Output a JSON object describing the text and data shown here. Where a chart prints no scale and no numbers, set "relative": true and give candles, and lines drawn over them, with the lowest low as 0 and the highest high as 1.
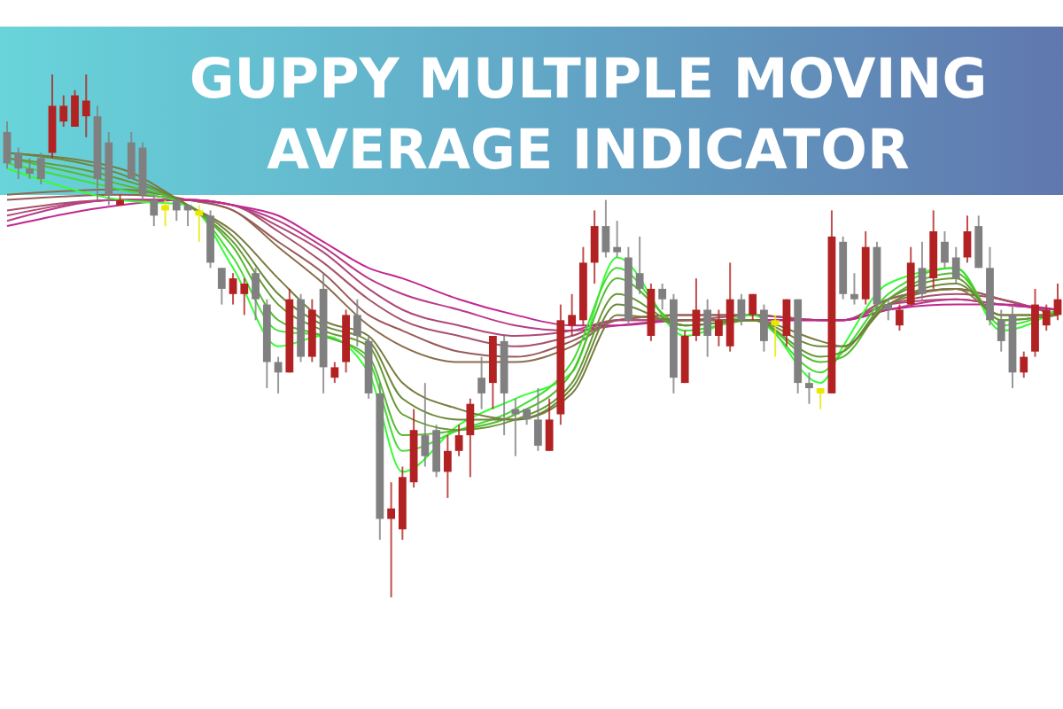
{
  "chart_data": {
    "type": "candlestick",
    "title": "GUPPY MULTIPLE MOVING AVERAGE INDICATOR",
    "relative": true,
    "categories": [
      null,
      null,
      null,
      null,
      null,
      null,
      null,
      null,
      null,
      null,
      null,
      null,
      null,
      null,
      null,
      null,
      null,
      null,
      null,
      null,
      null,
      null,
      null,
      null,
      null,
      null,
      null,
      null,
      null,
      null,
      null,
      null,
      null,
      null,
      null,
      null,
      null,
      null,
      null,
      null,
      null,
      null,
      null,
      null,
      null,
      null,
      null,
      null,
      null,
      null,
      null,
      null,
      null,
      null,
      null,
      null,
      null,
      null,
      null,
      null,
      null,
      null,
      null,
      null,
      null,
      null,
      null,
      null,
      null,
      null,
      null,
      null,
      null,
      null,
      null,
      null,
      null,
      null,
      null,
      null,
      null,
      null,
      null,
      null,
      null,
      null,
      null,
      null,
      null,
      null,
      null,
      null,
      null,
      null
    ],
    "ohlc": [
      [
        0.89,
        0.91,
        0.82,
        0.83
      ],
      [
        0.85,
        0.86,
        0.8,
        0.82
      ],
      [
        0.82,
        0.84,
        0.8,
        0.81
      ],
      [
        0.84,
        0.85,
        0.79,
        0.8
      ],
      [
        0.85,
        1.0,
        0.84,
        0.94
      ],
      [
        0.91,
        0.96,
        0.9,
        0.94
      ],
      [
        0.9,
        0.97,
        0.9,
        0.96
      ],
      [
        0.92,
        1.0,
        0.88,
        0.95
      ],
      [
        0.92,
        0.94,
        0.76,
        0.8
      ],
      [
        0.87,
        0.89,
        0.75,
        0.77
      ],
      [
        0.75,
        0.77,
        0.75,
        0.76
      ],
      [
        0.87,
        0.89,
        0.8,
        0.8
      ],
      [
        0.86,
        0.87,
        0.76,
        0.77
      ],
      [
        0.76,
        0.77,
        0.71,
        0.73
      ],
      [
        0.75,
        0.76,
        0.71,
        0.74
      ],
      [
        0.76,
        0.76,
        0.72,
        0.74
      ],
      [
        0.75,
        0.75,
        0.71,
        0.74
      ],
      [
        0.74,
        0.75,
        0.68,
        0.73
      ],
      [
        0.73,
        0.74,
        0.63,
        0.64
      ],
      [
        0.63,
        0.63,
        0.56,
        0.59
      ],
      [
        0.58,
        0.62,
        0.56,
        0.61
      ],
      [
        0.58,
        0.61,
        0.54,
        0.6
      ],
      [
        0.62,
        0.63,
        0.53,
        0.57
      ],
      [
        0.56,
        0.57,
        0.4,
        0.45
      ],
      [
        0.45,
        0.46,
        0.39,
        0.43
      ],
      [
        0.43,
        0.59,
        0.43,
        0.57
      ],
      [
        0.57,
        0.58,
        0.45,
        0.46
      ],
      [
        0.46,
        0.57,
        0.45,
        0.55
      ],
      [
        0.59,
        0.62,
        0.39,
        0.44
      ],
      [
        0.42,
        0.45,
        0.41,
        0.44
      ],
      [
        0.45,
        0.55,
        0.43,
        0.54
      ],
      [
        0.54,
        0.57,
        0.48,
        0.5
      ],
      [
        0.49,
        0.5,
        0.38,
        0.39
      ],
      [
        0.39,
        0.41,
        0.11,
        0.15
      ],
      [
        0.15,
        0.22,
        0,
        0.17
      ],
      [
        0.13,
        0.25,
        0.11,
        0.23
      ],
      [
        0.22,
        0.36,
        0.21,
        0.32
      ],
      [
        0.31,
        0.41,
        0.25,
        0.27
      ],
      [
        0.32,
        0.33,
        0.23,
        0.24
      ],
      [
        0.24,
        0.31,
        0.19,
        0.28
      ],
      [
        0.28,
        0.33,
        0.27,
        0.31
      ],
      [
        0.31,
        0.38,
        0.23,
        0.37
      ],
      [
        0.42,
        0.46,
        0.36,
        0.39
      ],
      [
        0.41,
        0.5,
        0.36,
        0.5
      ],
      [
        0.49,
        0.5,
        0.31,
        0.39
      ],
      [
        0.36,
        0.38,
        0.27,
        0.35
      ],
      [
        0.36,
        0.36,
        0.33,
        0.34
      ],
      [
        0.34,
        0.4,
        0.28,
        0.29
      ],
      [
        0.28,
        0.38,
        0.28,
        0.34
      ],
      [
        0.35,
        0.56,
        0.33,
        0.53
      ],
      [
        0.52,
        0.58,
        0.5,
        0.54
      ],
      [
        0.53,
        0.67,
        0.52,
        0.64
      ],
      [
        0.64,
        0.74,
        0.6,
        0.71
      ],
      [
        0.71,
        0.76,
        0.65,
        0.66
      ],
      [
        0.67,
        0.72,
        0.65,
        0.66
      ],
      [
        0.65,
        0.67,
        0.52,
        0.53
      ],
      [
        0.62,
        0.69,
        0.58,
        0.59
      ],
      [
        0.5,
        0.6,
        0.49,
        0.59
      ],
      [
        0.59,
        0.6,
        0.55,
        0.57
      ],
      [
        0.57,
        0.58,
        0.39,
        0.42
      ],
      [
        0.41,
        0.51,
        0.41,
        0.5
      ],
      [
        0.5,
        0.61,
        0.49,
        0.55
      ],
      [
        0.55,
        0.57,
        0.46,
        0.5
      ],
      [
        0.5,
        0.55,
        0.48,
        0.53
      ],
      [
        0.48,
        0.64,
        0.47,
        0.57
      ],
      [
        0.57,
        0.58,
        0.52,
        0.53
      ],
      [
        0.54,
        0.58,
        0.53,
        0.58
      ],
      [
        0.55,
        0.56,
        0.47,
        0.49
      ],
      [
        0.53,
        0.54,
        0.46,
        0.52
      ],
      [
        0.5,
        0.57,
        0.48,
        0.57
      ],
      [
        0.57,
        0.57,
        0.39,
        0.41
      ],
      [
        0.41,
        0.43,
        0.37,
        0.4
      ],
      [
        0.4,
        0.4,
        0.36,
        0.39
      ],
      [
        0.39,
        0.74,
        0.39,
        0.69
      ],
      [
        0.68,
        0.69,
        0.57,
        0.58
      ],
      [
        0.58,
        0.62,
        0.56,
        0.57
      ],
      [
        0.57,
        0.7,
        0.56,
        0.67
      ],
      [
        0.67,
        0.68,
        0.55,
        0.56
      ],
      [
        0.56,
        0.57,
        0.53,
        0.55
      ],
      [
        0.52,
        0.56,
        0.51,
        0.55
      ],
      [
        0.56,
        0.67,
        0.56,
        0.64
      ],
      [
        0.63,
        0.68,
        0.57,
        0.58
      ],
      [
        0.61,
        0.74,
        0.59,
        0.7
      ],
      [
        0.68,
        0.7,
        0.63,
        0.64
      ],
      [
        0.65,
        0.67,
        0.6,
        0.61
      ],
      [
        0.65,
        0.73,
        0.64,
        0.7
      ],
      [
        0.71,
        0.73,
        0.63,
        0.63
      ],
      [
        0.63,
        0.67,
        0.52,
        0.53
      ],
      [
        0.53,
        0.55,
        0.47,
        0.49
      ],
      [
        0.54,
        0.56,
        0.4,
        0.43
      ],
      [
        0.43,
        0.47,
        0.42,
        0.46
      ],
      [
        0.47,
        0.59,
        0.46,
        0.56
      ],
      [
        0.52,
        0.56,
        0.51,
        0.55
      ],
      [
        0.54,
        0.6,
        0.53,
        0.57
      ]
    ],
    "colors": [
      "#808080",
      "#808080",
      "#808080",
      "#808080",
      "#b22222",
      "#b22222",
      "#b22222",
      "#b22222",
      "#808080",
      "#808080",
      "#b22222",
      "#808080",
      "#808080",
      "#808080",
      "#e8e800",
      "#808080",
      "#808080",
      "#e8e800",
      "#808080",
      "#808080",
      "#b22222",
      "#b22222",
      "#808080",
      "#808080",
      "#808080",
      "#b22222",
      "#808080",
      "#b22222",
      "#808080",
      "#b22222",
      "#b22222",
      "#808080",
      "#808080",
      "#808080",
      "#b22222",
      "#b22222",
      "#b22222",
      "#808080",
      "#808080",
      "#b22222",
      "#b22222",
      "#b22222",
      "#808080",
      "#b22222",
      "#808080",
      "#808080",
      "#808080",
      "#808080",
      "#b22222",
      "#b22222",
      "#b22222",
      "#b22222",
      "#b22222",
      "#808080",
      "#808080",
      "#808080",
      "#808080",
      "#b22222",
      "#808080",
      "#808080",
      "#b22222",
      "#b22222",
      "#808080",
      "#b22222",
      "#b22222",
      "#808080",
      "#b22222",
      "#808080",
      "#e8e800",
      "#b22222",
      "#808080",
      "#808080",
      "#e8e800",
      "#b22222",
      "#808080",
      "#808080",
      "#b22222",
      "#808080",
      "#808080",
      "#b22222",
      "#b22222",
      "#808080",
      "#b22222",
      "#808080",
      "#808080",
      "#b22222",
      "#808080",
      "#808080",
      "#808080",
      "#808080",
      "#b22222",
      "#b22222",
      "#b22222",
      "#b22222"
    ],
    "series": [
      {
        "type": "line",
        "color": "#8b6b4a",
        "values": [
          0.77,
          null,
          null,
          null,
          null,
          null,
          null,
          null,
          null,
          null,
          0.78,
          null,
          null,
          null,
          null,
          null,
          0.76,
          null,
          null,
          null,
          0.74,
          null,
          null,
          null,
          0.67,
          null,
          null,
          null,
          0.6,
          null,
          null,
          null,
          0.52,
          null,
          null,
          0.48,
          null,
          null,
          null,
          null,
          0.45,
          null,
          null,
          null,
          null,
          0.45,
          null,
          null,
          null,
          null,
          0.48,
          null,
          null,
          null,
          0.53,
          null,
          null,
          null,
          null,
          null,
          0.54,
          null,
          null,
          null,
          null,
          null,
          0.54,
          null,
          null,
          null,
          null,
          null,
          0.53,
          null,
          0.53,
          null,
          null,
          null,
          0.57,
          null,
          null,
          null,
          null,
          null,
          0.59,
          null,
          null,
          null,
          0.57,
          null,
          null,
          null,
          null,
          0.54
        ]
      },
      {
        "type": "line",
        "color": "#9a5a5a",
        "values": [
          0.76,
          null,
          null,
          null,
          null,
          null,
          null,
          null,
          null,
          null,
          0.77,
          null,
          null,
          null,
          null,
          null,
          0.76,
          null,
          null,
          null,
          0.74,
          null,
          null,
          null,
          0.68,
          null,
          null,
          null,
          0.62,
          null,
          null,
          null,
          0.54,
          null,
          null,
          0.51,
          null,
          null,
          null,
          null,
          0.47,
          null,
          null,
          null,
          null,
          0.46,
          null,
          null,
          null,
          null,
          0.49,
          null,
          null,
          null,
          0.53,
          null,
          null,
          null,
          null,
          null,
          0.54,
          null,
          null,
          null,
          null,
          null,
          0.54,
          null,
          null,
          null,
          null,
          null,
          0.53,
          null,
          0.53,
          null,
          null,
          null,
          0.57,
          null,
          null,
          null,
          null,
          null,
          0.59,
          null,
          null,
          null,
          0.57,
          null,
          null,
          null,
          null,
          0.54
        ]
      },
      {
        "type": "line",
        "color": "#a8506a",
        "values": [
          0.74,
          null,
          null,
          null,
          null,
          null,
          null,
          null,
          null,
          null,
          0.76,
          null,
          null,
          null,
          null,
          null,
          0.76,
          null,
          null,
          null,
          0.75,
          null,
          null,
          null,
          0.7,
          null,
          null,
          null,
          0.64,
          null,
          null,
          null,
          0.57,
          null,
          null,
          0.53,
          null,
          null,
          null,
          null,
          0.5,
          null,
          null,
          null,
          null,
          0.48,
          null,
          null,
          null,
          null,
          0.5,
          null,
          null,
          null,
          0.53,
          null,
          null,
          null,
          null,
          null,
          0.53,
          null,
          null,
          null,
          null,
          null,
          0.54,
          null,
          null,
          null,
          null,
          null,
          0.53,
          null,
          0.53,
          null,
          null,
          null,
          0.56,
          null,
          null,
          null,
          null,
          null,
          0.58,
          null,
          null,
          null,
          0.57,
          null,
          null,
          null,
          null,
          0.54
        ]
      },
      {
        "type": "line",
        "color": "#b04878",
        "values": [
          0.73,
          null,
          null,
          null,
          null,
          null,
          null,
          null,
          null,
          null,
          0.76,
          null,
          null,
          null,
          null,
          null,
          0.76,
          null,
          null,
          null,
          0.75,
          null,
          null,
          null,
          0.71,
          null,
          null,
          null,
          0.66,
          null,
          null,
          null,
          0.59,
          null,
          null,
          0.55,
          null,
          null,
          null,
          null,
          0.52,
          null,
          null,
          null,
          null,
          0.5,
          null,
          null,
          null,
          null,
          0.51,
          null,
          null,
          null,
          0.53,
          null,
          null,
          null,
          null,
          null,
          0.53,
          null,
          null,
          null,
          null,
          null,
          0.53,
          null,
          null,
          null,
          null,
          null,
          0.53,
          null,
          0.53,
          null,
          null,
          null,
          0.56,
          null,
          null,
          null,
          null,
          null,
          0.57,
          null,
          null,
          null,
          0.56,
          null,
          null,
          null,
          null,
          0.55
        ]
      },
      {
        "type": "line",
        "color": "#b83c88",
        "values": [
          0.72,
          null,
          null,
          null,
          null,
          null,
          null,
          null,
          null,
          null,
          0.76,
          null,
          null,
          null,
          null,
          null,
          0.76,
          null,
          null,
          null,
          0.75,
          null,
          null,
          null,
          0.72,
          null,
          null,
          null,
          0.67,
          null,
          null,
          null,
          0.61,
          null,
          null,
          0.58,
          null,
          null,
          null,
          null,
          0.55,
          null,
          null,
          null,
          null,
          0.52,
          null,
          null,
          null,
          null,
          0.51,
          null,
          null,
          null,
          0.52,
          null,
          null,
          null,
          null,
          null,
          0.53,
          null,
          null,
          null,
          null,
          null,
          0.53,
          null,
          null,
          null,
          null,
          null,
          0.53,
          null,
          0.53,
          null,
          null,
          null,
          0.55,
          null,
          null,
          null,
          null,
          null,
          0.57,
          null,
          null,
          null,
          0.56,
          null,
          null,
          null,
          null,
          0.55
        ]
      },
      {
        "type": "line",
        "color": "#c02890",
        "values": [
          0.71,
          null,
          null,
          null,
          null,
          null,
          null,
          null,
          null,
          null,
          0.75,
          null,
          null,
          null,
          null,
          null,
          0.76,
          null,
          null,
          null,
          0.75,
          null,
          null,
          null,
          0.73,
          null,
          null,
          null,
          0.68,
          null,
          null,
          null,
          0.63,
          null,
          null,
          0.61,
          null,
          null,
          null,
          null,
          0.57,
          null,
          null,
          null,
          null,
          0.54,
          null,
          null,
          null,
          null,
          0.52,
          null,
          null,
          null,
          0.52,
          null,
          null,
          null,
          null,
          null,
          0.53,
          null,
          null,
          null,
          null,
          null,
          0.53,
          null,
          null,
          null,
          null,
          null,
          0.53,
          null,
          0.53,
          null,
          null,
          null,
          0.55,
          null,
          null,
          null,
          null,
          null,
          0.56,
          null,
          null,
          null,
          0.56,
          null,
          null,
          null,
          null,
          0.55
        ]
      },
      {
        "type": "line",
        "color": "#33ff33",
        "values": [
          0.82,
          null,
          null,
          null,
          null,
          null,
          null,
          null,
          null,
          null,
          0.76,
          null,
          null,
          null,
          null,
          null,
          0.75,
          null,
          null,
          null,
          0.63,
          null,
          null,
          null,
          0.48,
          null,
          null,
          null,
          0.5,
          null,
          null,
          null,
          0.43,
          null,
          null,
          0.24,
          null,
          null,
          null,
          null,
          0.33,
          null,
          null,
          null,
          null,
          0.38,
          null,
          null,
          null,
          null,
          0.43,
          null,
          null,
          null,
          0.65,
          null,
          null,
          null,
          null,
          null,
          0.5,
          null,
          null,
          null,
          null,
          null,
          0.54,
          null,
          null,
          null,
          null,
          null,
          0.41,
          null,
          0.48,
          null,
          null,
          null,
          0.6,
          null,
          null,
          null,
          null,
          null,
          0.63,
          null,
          null,
          null,
          0.51,
          null,
          null,
          null,
          null,
          0.55
        ]
      },
      {
        "type": "line",
        "color": "#44dd33",
        "values": [
          0.83,
          null,
          null,
          null,
          null,
          null,
          null,
          null,
          null,
          null,
          0.78,
          null,
          null,
          null,
          null,
          null,
          0.75,
          null,
          null,
          null,
          0.65,
          null,
          null,
          null,
          0.51,
          null,
          null,
          null,
          0.5,
          null,
          null,
          null,
          0.45,
          null,
          null,
          0.28,
          null,
          null,
          null,
          null,
          0.32,
          null,
          null,
          null,
          null,
          0.36,
          null,
          null,
          null,
          null,
          0.45,
          null,
          null,
          null,
          0.63,
          null,
          null,
          null,
          null,
          null,
          0.51,
          null,
          null,
          null,
          null,
          null,
          0.53,
          null,
          null,
          null,
          null,
          null,
          0.43,
          null,
          0.47,
          null,
          null,
          null,
          0.58,
          null,
          null,
          null,
          null,
          null,
          0.63,
          null,
          null,
          null,
          0.52,
          null,
          null,
          null,
          null,
          0.55
        ]
      },
      {
        "type": "line",
        "color": "#55bb33",
        "values": [
          0.84,
          null,
          null,
          null,
          null,
          null,
          null,
          null,
          null,
          null,
          0.79,
          null,
          null,
          null,
          null,
          null,
          0.75,
          null,
          null,
          null,
          0.67,
          null,
          null,
          null,
          0.53,
          null,
          null,
          null,
          0.5,
          null,
          null,
          null,
          0.46,
          null,
          null,
          0.31,
          null,
          null,
          null,
          null,
          0.32,
          null,
          null,
          null,
          null,
          0.35,
          null,
          null,
          null,
          null,
          0.43,
          null,
          null,
          null,
          0.61,
          null,
          null,
          null,
          null,
          null,
          0.52,
          null,
          null,
          null,
          null,
          null,
          0.53,
          null,
          null,
          null,
          null,
          null,
          0.45,
          null,
          0.46,
          null,
          null,
          null,
          0.57,
          null,
          null,
          null,
          null,
          null,
          0.62,
          null,
          null,
          null,
          0.53,
          null,
          null,
          null,
          null,
          0.54
        ]
      },
      {
        "type": "line",
        "color": "#669933",
        "values": [
          0.84,
          null,
          null,
          null,
          null,
          null,
          null,
          null,
          null,
          null,
          0.8,
          null,
          null,
          null,
          null,
          null,
          0.75,
          null,
          null,
          null,
          0.68,
          null,
          null,
          null,
          0.56,
          null,
          null,
          null,
          0.51,
          null,
          null,
          null,
          0.48,
          null,
          null,
          0.35,
          null,
          null,
          null,
          null,
          0.32,
          null,
          null,
          null,
          null,
          0.34,
          null,
          null,
          null,
          null,
          0.41,
          null,
          null,
          null,
          0.58,
          null,
          null,
          null,
          null,
          null,
          0.52,
          null,
          null,
          null,
          null,
          null,
          0.53,
          null,
          null,
          null,
          null,
          null,
          0.46,
          null,
          0.47,
          null,
          null,
          null,
          0.57,
          null,
          null,
          null,
          null,
          null,
          0.61,
          null,
          null,
          null,
          0.53,
          null,
          null,
          null,
          null,
          0.54
        ]
      },
      {
        "type": "line",
        "color": "#6b8a3a",
        "values": [
          0.85,
          null,
          null,
          null,
          null,
          null,
          null,
          null,
          null,
          null,
          0.81,
          null,
          null,
          null,
          null,
          null,
          0.75,
          null,
          null,
          null,
          0.69,
          null,
          null,
          null,
          0.58,
          null,
          null,
          null,
          0.52,
          null,
          null,
          null,
          0.49,
          null,
          null,
          0.38,
          null,
          null,
          null,
          null,
          0.34,
          null,
          null,
          null,
          null,
          0.34,
          null,
          null,
          null,
          null,
          0.4,
          null,
          null,
          null,
          0.56,
          null,
          null,
          null,
          null,
          null,
          0.52,
          null,
          null,
          null,
          null,
          null,
          0.53,
          null,
          null,
          null,
          null,
          null,
          0.48,
          null,
          0.48,
          null,
          null,
          null,
          0.56,
          null,
          null,
          null,
          null,
          null,
          0.6,
          null,
          null,
          null,
          0.54,
          null,
          null,
          null,
          null,
          0.54
        ]
      },
      {
        "type": "line",
        "color": "#7a7a40",
        "values": [
          0.85,
          null,
          null,
          null,
          null,
          null,
          null,
          null,
          null,
          null,
          0.82,
          null,
          null,
          null,
          null,
          null,
          0.75,
          null,
          null,
          null,
          0.7,
          null,
          null,
          null,
          0.61,
          null,
          null,
          null,
          0.53,
          null,
          null,
          null,
          0.5,
          null,
          null,
          0.41,
          null,
          null,
          null,
          null,
          0.36,
          null,
          null,
          null,
          null,
          0.34,
          null,
          null,
          null,
          null,
          0.39,
          null,
          null,
          null,
          0.54,
          null,
          null,
          null,
          null,
          null,
          0.53,
          null,
          null,
          null,
          null,
          null,
          0.53,
          null,
          null,
          null,
          null,
          null,
          0.49,
          null,
          0.48,
          null,
          null,
          null,
          0.56,
          null,
          null,
          null,
          null,
          null,
          0.59,
          null,
          null,
          null,
          0.54,
          null,
          null,
          null,
          null,
          0.54
        ]
      }
    ]
  }
}
